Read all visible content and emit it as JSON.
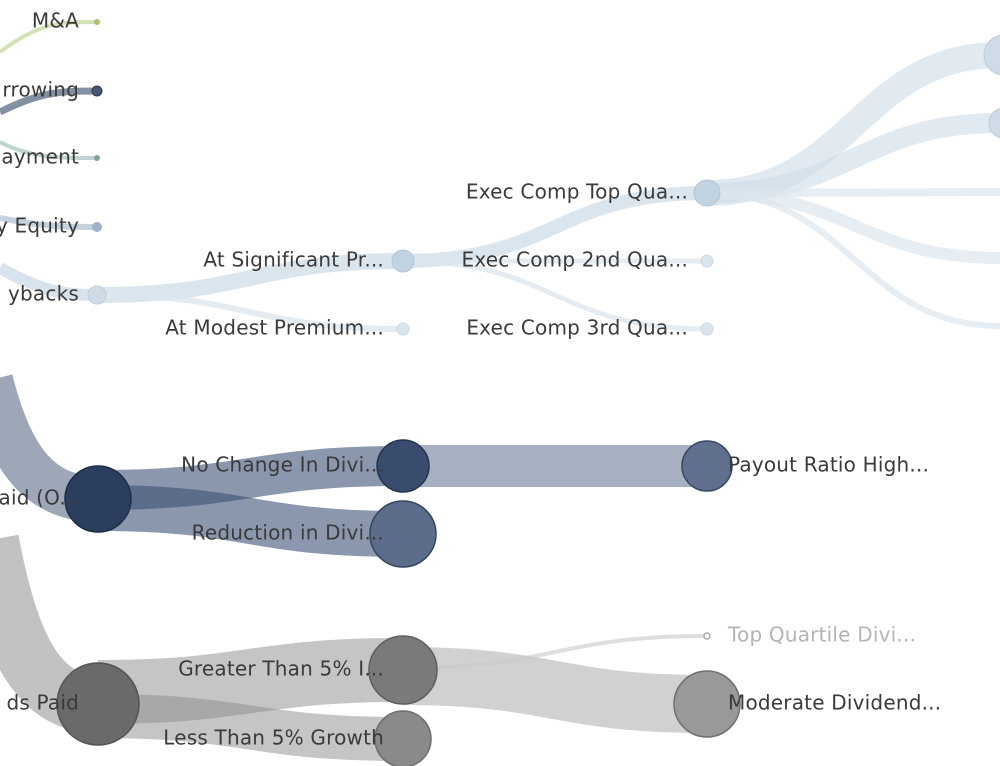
{
  "colors": {
    "green": "#c9d9a3",
    "green_dot": "#a9c278",
    "slate": "#5f6f85",
    "teal_dot": "#7fa3a0",
    "light_blue": "#cfdce8",
    "light_blue_node": "#c2d3e2",
    "navy": "#2c3e5e",
    "navy_band": "#3e5276",
    "gray_band": "#8c8c8c",
    "gray_node": "#6a6a6a"
  },
  "labels": {
    "ma": "M&A",
    "borrowing": "rrowing",
    "repayment": "ayment",
    "equity": "y Equity",
    "buybacks": "ybacks",
    "at_significant": "At Significant Pr...",
    "at_modest": "At Modest Premium...",
    "exec_top": "Exec Comp Top Qua...",
    "exec_2nd": "Exec Comp 2nd Qua...",
    "exec_3rd": "Exec Comp 3rd Qua...",
    "paid_o": "aid (O...",
    "no_change": "No Change In Divi...",
    "reduction": "Reduction in Divi...",
    "payout_high": "Payout Ratio High...",
    "dividends_paid": "ds Paid",
    "greater_5": "Greater Than 5% I...",
    "less_5": "Less Than 5% Growth",
    "top_quartile": "Top Quartile Divi...",
    "moderate": "Moderate Dividend..."
  }
}
